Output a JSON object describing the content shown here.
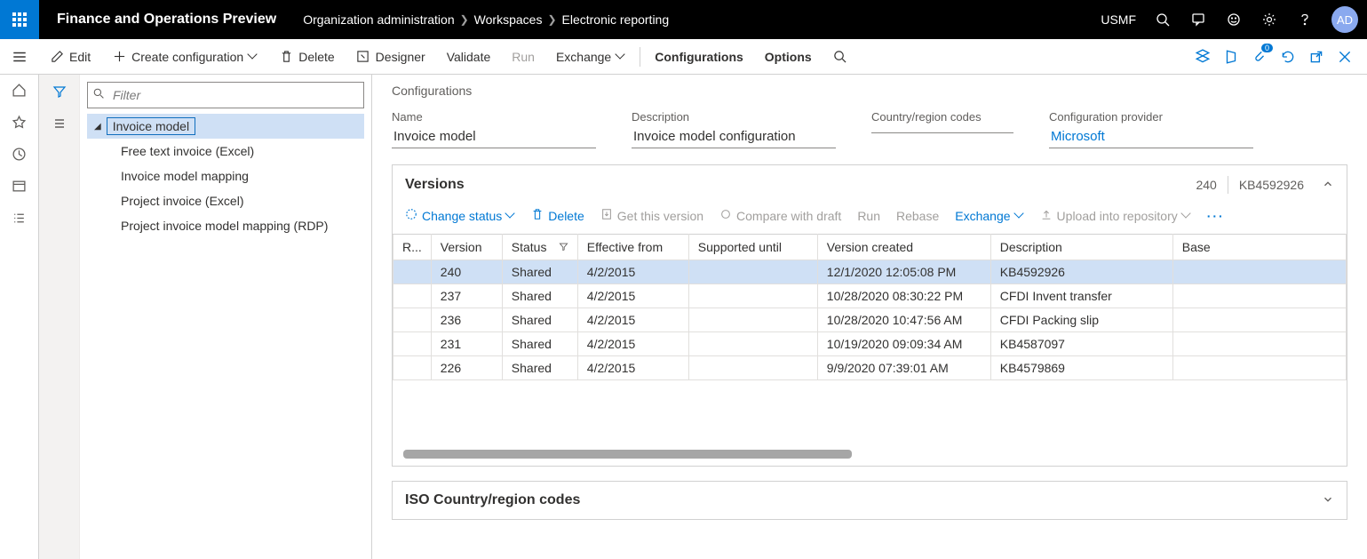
{
  "topbar": {
    "app_title": "Finance and Operations Preview",
    "breadcrumbs": [
      "Organization administration",
      "Workspaces",
      "Electronic reporting"
    ],
    "company": "USMF",
    "avatar": "AD"
  },
  "actions": {
    "edit": "Edit",
    "create": "Create configuration",
    "delete": "Delete",
    "designer": "Designer",
    "validate": "Validate",
    "run": "Run",
    "exchange": "Exchange",
    "configurations": "Configurations",
    "options": "Options"
  },
  "tree": {
    "filter_placeholder": "Filter",
    "root": "Invoice model",
    "children": [
      "Free text invoice (Excel)",
      "Invoice model mapping",
      "Project invoice (Excel)",
      "Project invoice model mapping (RDP)"
    ]
  },
  "details": {
    "heading": "Configurations",
    "name_label": "Name",
    "name_value": "Invoice model",
    "desc_label": "Description",
    "desc_value": "Invoice model configuration",
    "country_label": "Country/region codes",
    "country_value": "",
    "provider_label": "Configuration provider",
    "provider_value": "Microsoft"
  },
  "versions": {
    "title": "Versions",
    "summary_version": "240",
    "summary_desc": "KB4592926",
    "toolbar": {
      "change_status": "Change status",
      "delete": "Delete",
      "get_version": "Get this version",
      "compare": "Compare with draft",
      "run": "Run",
      "rebase": "Rebase",
      "exchange": "Exchange",
      "upload": "Upload into repository"
    },
    "columns": [
      "R...",
      "Version",
      "Status",
      "Effective from",
      "Supported until",
      "Version created",
      "Description",
      "Base"
    ],
    "rows": [
      {
        "version": "240",
        "status": "Shared",
        "effective": "4/2/2015",
        "supported": "",
        "created": "12/1/2020 12:05:08 PM",
        "description": "KB4592926",
        "base": "",
        "selected": true
      },
      {
        "version": "237",
        "status": "Shared",
        "effective": "4/2/2015",
        "supported": "",
        "created": "10/28/2020 08:30:22 PM",
        "description": "CFDI Invent transfer",
        "base": "",
        "selected": false
      },
      {
        "version": "236",
        "status": "Shared",
        "effective": "4/2/2015",
        "supported": "",
        "created": "10/28/2020 10:47:56 AM",
        "description": "CFDI Packing slip",
        "base": "",
        "selected": false
      },
      {
        "version": "231",
        "status": "Shared",
        "effective": "4/2/2015",
        "supported": "",
        "created": "10/19/2020 09:09:34 AM",
        "description": "KB4587097",
        "base": "",
        "selected": false
      },
      {
        "version": "226",
        "status": "Shared",
        "effective": "4/2/2015",
        "supported": "",
        "created": "9/9/2020 07:39:01 AM",
        "description": "KB4579869",
        "base": "",
        "selected": false
      }
    ]
  },
  "iso": {
    "title": "ISO Country/region codes"
  },
  "attachments_badge": "0"
}
